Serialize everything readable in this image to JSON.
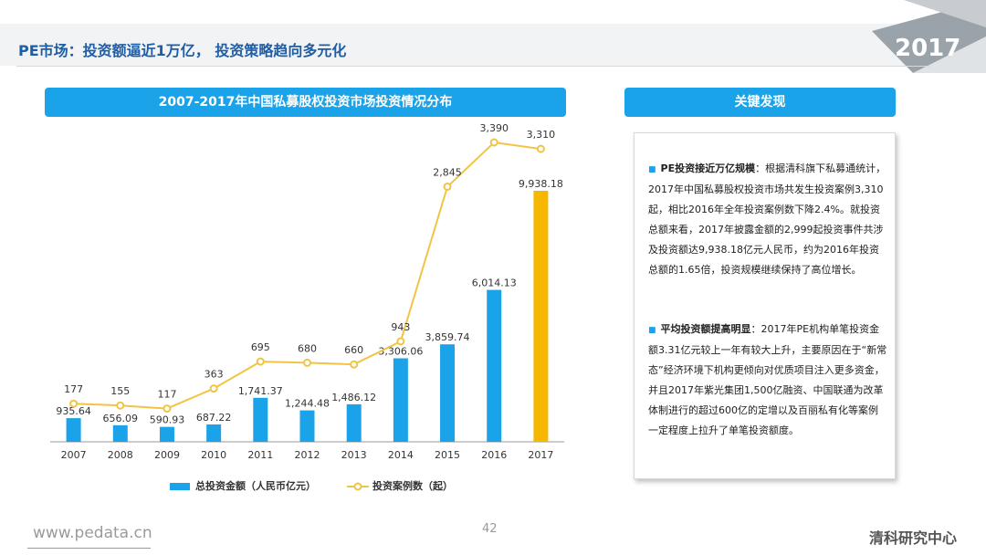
{
  "header": {
    "title": "PE市场：投资额逼近1万亿， 投资策略趋向多元化",
    "year_badge": "2017"
  },
  "chart_panel": {
    "title": "2007-2017年中国私募股权投资市场投资情况分布"
  },
  "findings_panel": {
    "title": "关键发现",
    "items": [
      {
        "heading": "PE投资接近万亿规模",
        "text": "：根据清科旗下私募通统计，2017年中国私募股权投资市场共发生投资案例3,310起，相比2016年全年投资案例数下降2.4%。就投资总额来看，2017年披露金额的2,999起投资事件共涉及投资额达9,938.18亿元人民币，约为2016年投资总额的1.65倍，投资规模继续保持了高位增长。"
      },
      {
        "heading": "平均投资额提高明显",
        "text": "：2017年PE机构单笔投资金额3.31亿元较上一年有较大上升，主要原因在于“新常态”经济环境下机构更倾向对优质项目注入更多资金，并且2017年紫光集团1,500亿融资、中国联通为改革体制进行的超过600亿的定增以及百丽私有化等案例一定程度上拉升了单笔投资额度。"
      }
    ]
  },
  "footer": {
    "url": "www.pedata.cn",
    "page": "42",
    "brand": "清科研究中心"
  },
  "colors": {
    "bar": "#1aa3e8",
    "bar_highlight": "#f6b700",
    "line": "#f2c443",
    "header_blue": "#1aa3e8",
    "title_blue": "#1e5ea8"
  },
  "chart_data": {
    "type": "bar",
    "categories": [
      "2007",
      "2008",
      "2009",
      "2010",
      "2011",
      "2012",
      "2013",
      "2014",
      "2015",
      "2016",
      "2017"
    ],
    "series": [
      {
        "name": "总投资金额（人民币亿元）",
        "kind": "bar",
        "values": [
          935.64,
          656.09,
          590.93,
          687.22,
          1741.37,
          1244.48,
          1486.12,
          3306.06,
          3859.74,
          6014.13,
          9938.18
        ],
        "labels": [
          "935.64",
          "656.09",
          "590.93",
          "687.22",
          "1,741.37",
          "1,244.48",
          "1,486.12",
          "3,306.06",
          "3,859.74",
          "6,014.13",
          "9,938.18"
        ]
      },
      {
        "name": "投资案例数（起）",
        "kind": "line",
        "values": [
          177,
          155,
          117,
          363,
          695,
          680,
          660,
          943,
          2845,
          3390,
          3310
        ],
        "labels": [
          "177",
          "155",
          "117",
          "363",
          "695",
          "680",
          "660",
          "943",
          "2,845",
          "3,390",
          "3,310"
        ]
      }
    ],
    "legend": "bottom",
    "grid": false
  }
}
